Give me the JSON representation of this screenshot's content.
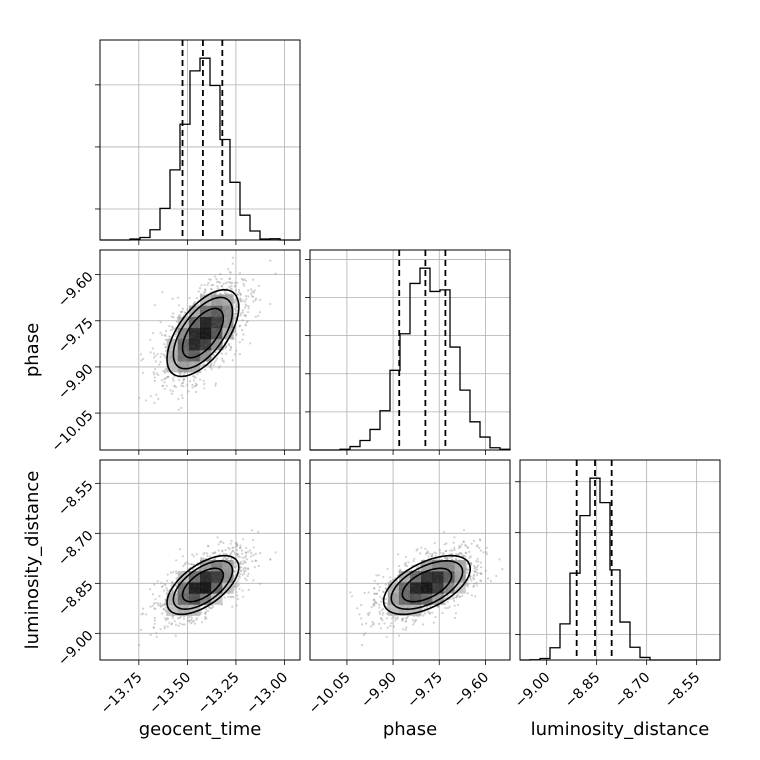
{
  "chart_data": {
    "type": "corner",
    "parameters": [
      "geocent_time",
      "phase",
      "luminosity_distance"
    ],
    "axis_labels": {
      "geocent_time": "geocent_time",
      "phase": "phase",
      "luminosity_distance": "luminosity_distance"
    },
    "ranges": {
      "geocent_time": [
        -13.95,
        -12.92
      ],
      "phase": [
        -10.17,
        -9.52
      ],
      "luminosity_distance": [
        -9.08,
        -8.48
      ]
    },
    "ticks": {
      "geocent_time": [
        -13.75,
        -13.5,
        -13.25,
        -13.0
      ],
      "phase": [
        -10.05,
        -9.9,
        -9.75,
        -9.6
      ],
      "luminosity_distance": [
        -9.0,
        -8.85,
        -8.7,
        -8.55
      ]
    },
    "tick_labels": {
      "geocent_time": [
        "−13.75",
        "−13.50",
        "−13.25",
        "−13.00"
      ],
      "phase": [
        "−10.05",
        "−9.90",
        "−9.75",
        "−9.60"
      ],
      "luminosity_distance": [
        "−9.00",
        "−8.85",
        "−8.70",
        "−8.55"
      ]
    },
    "marginals": {
      "geocent_time": {
        "mean": -13.42,
        "std": 0.105,
        "quantiles": [
          -13.525,
          -13.42,
          -13.32
        ]
      },
      "phase": {
        "mean": -9.79,
        "std": 0.08,
        "quantiles": [
          -9.88,
          -9.795,
          -9.73
        ]
      },
      "luminosity_distance": {
        "mean": -8.855,
        "std": 0.05,
        "quantiles": [
          -8.91,
          -8.855,
          -8.805
        ]
      }
    },
    "correlations": {
      "phase|geocent_time": 0.6,
      "luminosity_distance|geocent_time": 0.6,
      "luminosity_distance|phase": 0.55
    },
    "grid": true,
    "n_samples": 3000
  }
}
